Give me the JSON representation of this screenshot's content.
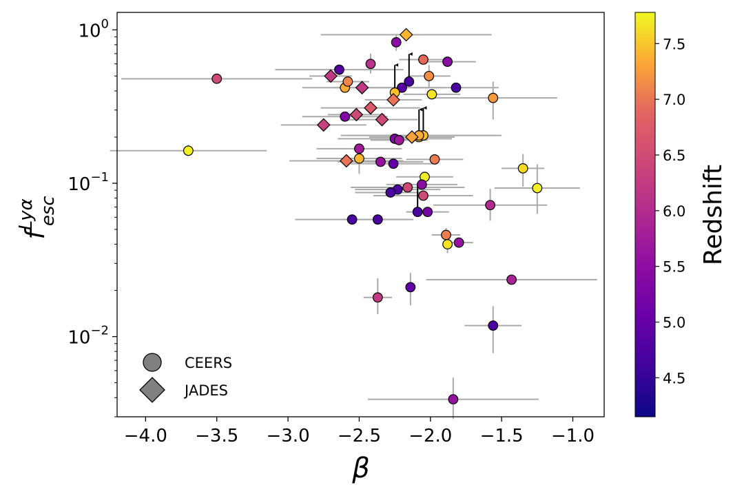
{
  "chart_data": {
    "type": "scatter",
    "title": "",
    "xlabel": "β",
    "ylabel_base": "f",
    "ylabel_sup": "Lyα",
    "ylabel_sub": "esc",
    "xlim": [
      -4.2,
      -0.78
    ],
    "ylim": [
      0.003,
      1.3
    ],
    "yscale": "log",
    "x_ticks": [
      -4.0,
      -3.5,
      -3.0,
      -2.5,
      -2.0,
      -1.5,
      -1.0
    ],
    "x_tick_labels": [
      "−4.0",
      "−3.5",
      "−3.0",
      "−2.5",
      "−2.0",
      "−1.5",
      "−1.0"
    ],
    "y_ticks": [
      {
        "value": 1,
        "base": "10",
        "exp": "0"
      },
      {
        "value": 0.1,
        "base": "10",
        "exp": "−1"
      },
      {
        "value": 0.01,
        "base": "10",
        "exp": "−2"
      }
    ],
    "colorbar": {
      "label": "Redshift",
      "range": [
        4.15,
        7.78
      ],
      "ticks": [
        4.5,
        5.0,
        5.5,
        6.0,
        6.5,
        7.0,
        7.5
      ],
      "tick_labels": [
        "4.5",
        "5.0",
        "5.5",
        "6.0",
        "6.5",
        "7.0",
        "7.5"
      ],
      "colormap": "plasma"
    },
    "legend": {
      "position": "lower-left",
      "entries": [
        {
          "label": "CEERS",
          "marker": "circle"
        },
        {
          "label": "JADES",
          "marker": "diamond"
        }
      ]
    },
    "series": [
      {
        "name": "CEERS",
        "marker": "circle",
        "points": [
          {
            "x": -3.5,
            "y": 0.48,
            "z": 6.0,
            "xerr": 0.67
          },
          {
            "x": -3.7,
            "y": 0.163,
            "z": 7.7,
            "xerr": 0.55,
            "yerr_lo": 0.013,
            "yerr_hi": 0.015
          },
          {
            "x": -2.64,
            "y": 0.55,
            "z": 4.7,
            "xerr": 0.45
          },
          {
            "x": -2.6,
            "y": 0.42,
            "z": 7.1,
            "xerr": 0.3
          },
          {
            "x": -2.58,
            "y": 0.46,
            "z": 6.7,
            "xerr": 0.15
          },
          {
            "x": -2.42,
            "y": 0.6,
            "z": 5.7,
            "yerr_lo": 0.08,
            "yerr_hi": 0.1
          },
          {
            "x": -2.6,
            "y": 0.272,
            "z": 5.1,
            "xerr": 0.3
          },
          {
            "x": -2.24,
            "y": 0.83,
            "z": 5.2,
            "yerr_lo": 0.1,
            "yerr_hi": 0.11
          },
          {
            "x": -2.05,
            "y": 0.64,
            "z": 6.4,
            "xerr": 0.17
          },
          {
            "x": -1.88,
            "y": 0.62,
            "z": 5.2,
            "xerr": 0.2
          },
          {
            "x": -2.01,
            "y": 0.5,
            "z": 6.8,
            "xerr": 0.15,
            "yerr_lo": 0.08,
            "yerr_hi": 0.09
          },
          {
            "x": -2.2,
            "y": 0.42,
            "z": 4.7,
            "xerr": 0.3
          },
          {
            "x": -2.15,
            "y": 0.46,
            "z": 4.6,
            "lower_limit": true
          },
          {
            "x": -2.25,
            "y": 0.39,
            "z": 7.3,
            "lower_limit": true
          },
          {
            "x": -1.99,
            "y": 0.38,
            "z": 7.6,
            "xerr": 0.2
          },
          {
            "x": -1.82,
            "y": 0.42,
            "z": 4.6,
            "xerr": 0.3
          },
          {
            "x": -1.56,
            "y": 0.36,
            "z": 6.9,
            "xerr": 0.45,
            "yerr_lo": 0.1,
            "yerr_hi": 0.1
          },
          {
            "x": -2.25,
            "y": 0.195,
            "z": 5.1,
            "xerr": 0.4
          },
          {
            "x": -2.22,
            "y": 0.191,
            "z": 5.4,
            "xerr": 0.2
          },
          {
            "x": -2.08,
            "y": 0.2,
            "z": 7.4,
            "lower_limit": true
          },
          {
            "x": -2.05,
            "y": 0.205,
            "z": 7.3,
            "xerr": 0.55,
            "lower_limit": true
          },
          {
            "x": -2.08,
            "y": 0.205,
            "z": 7.1,
            "xerr": 0.55
          },
          {
            "x": -2.5,
            "y": 0.168,
            "z": 5.4,
            "xerr": 0.3
          },
          {
            "x": -2.5,
            "y": 0.145,
            "z": 7.2,
            "xerr": 0.3,
            "yerr_lo": 0.03,
            "yerr_hi": 0.03
          },
          {
            "x": -2.35,
            "y": 0.138,
            "z": 5.3,
            "xerr": 0.3
          },
          {
            "x": -2.26,
            "y": 0.134,
            "z": 4.8,
            "xerr": 0.3
          },
          {
            "x": -1.97,
            "y": 0.143,
            "z": 6.6,
            "xerr": 0.2
          },
          {
            "x": -2.04,
            "y": 0.11,
            "z": 7.7,
            "xerr": 0.2
          },
          {
            "x": -1.35,
            "y": 0.125,
            "z": 7.5,
            "xerr": 0.15,
            "yerr_lo": 0.03,
            "yerr_hi": 0.03
          },
          {
            "x": -1.25,
            "y": 0.093,
            "z": 7.7,
            "xerr": 0.3,
            "yerr_lo": 0.03,
            "yerr_hi": 0.04
          },
          {
            "x": -2.06,
            "y": 0.098,
            "z": 5.2,
            "xerr": 0.25
          },
          {
            "x": -2.16,
            "y": 0.094,
            "z": 6.0,
            "xerr": 0.4
          },
          {
            "x": -2.23,
            "y": 0.091,
            "z": 4.6,
            "xerr": 0.3
          },
          {
            "x": -2.28,
            "y": 0.087,
            "z": 4.6,
            "xerr": 0.25
          },
          {
            "x": -2.05,
            "y": 0.083,
            "z": 6.0,
            "xerr": 0.35
          },
          {
            "x": -1.58,
            "y": 0.072,
            "z": 5.6,
            "xerr": 0.4,
            "yerr_lo": 0.015,
            "yerr_hi": 0.02
          },
          {
            "x": -2.09,
            "y": 0.065,
            "z": 4.6,
            "lower_limit": true
          },
          {
            "x": -2.02,
            "y": 0.065,
            "z": 5.0,
            "xerr": 0.15
          },
          {
            "x": -2.55,
            "y": 0.058,
            "z": 4.6,
            "xerr": 0.4
          },
          {
            "x": -2.37,
            "y": 0.058,
            "z": 4.6,
            "xerr": 0.25
          },
          {
            "x": -1.89,
            "y": 0.046,
            "z": 6.6,
            "xerr": 0.1,
            "yerr_lo": 0.005,
            "yerr_hi": 0.005
          },
          {
            "x": -1.88,
            "y": 0.04,
            "z": 7.6,
            "yerr_lo": 0.005,
            "yerr_hi": 0.006
          },
          {
            "x": -1.8,
            "y": 0.041,
            "z": 5.3,
            "xerr": 0.1
          },
          {
            "x": -1.43,
            "y": 0.0235,
            "z": 5.5,
            "xerr": 0.6
          },
          {
            "x": -2.37,
            "y": 0.018,
            "z": 5.8,
            "xerr": 0.1,
            "yerr_lo": 0.004,
            "yerr_hi": 0.006
          },
          {
            "x": -2.14,
            "y": 0.021,
            "z": 4.8,
            "yerr_lo": 0.005,
            "yerr_hi": 0.005
          },
          {
            "x": -1.56,
            "y": 0.0118,
            "z": 4.6,
            "xerr": 0.2,
            "yerr_lo": 0.004,
            "yerr_hi": 0.004
          },
          {
            "x": -1.84,
            "y": 0.0039,
            "z": 5.3,
            "xerr": 0.6,
            "yerr_lo": 0.001,
            "yerr_hi": 0.0015
          }
        ]
      },
      {
        "name": "JADES",
        "marker": "diamond",
        "points": [
          {
            "x": -2.17,
            "y": 0.93,
            "z": 7.2,
            "xerr": 0.6
          },
          {
            "x": -2.7,
            "y": 0.5,
            "z": 5.8,
            "xerr": 0.15
          },
          {
            "x": -2.48,
            "y": 0.42,
            "z": 5.8,
            "xerr": 0.2
          },
          {
            "x": -2.26,
            "y": 0.35,
            "z": 6.5,
            "xerr": 0.2
          },
          {
            "x": -2.42,
            "y": 0.31,
            "z": 6.2,
            "xerr": 0.35
          },
          {
            "x": -2.52,
            "y": 0.28,
            "z": 6.0,
            "xerr": 0.2
          },
          {
            "x": -2.34,
            "y": 0.26,
            "z": 6.0,
            "xerr": 0.25
          },
          {
            "x": -2.75,
            "y": 0.24,
            "z": 5.9,
            "xerr": 0.3
          },
          {
            "x": -2.13,
            "y": 0.2,
            "z": 7.0,
            "xerr": 0.3
          },
          {
            "x": -2.59,
            "y": 0.14,
            "z": 6.5,
            "xerr": 0.4
          }
        ]
      }
    ]
  }
}
